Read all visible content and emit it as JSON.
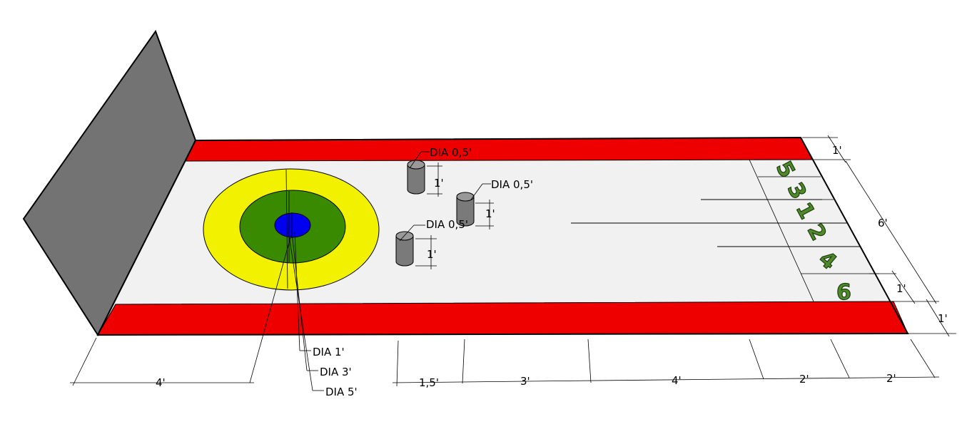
{
  "colors": {
    "wall": "#737373",
    "stripe": "#ef0000",
    "court": "#f1f1f1",
    "ring_outer": "#f2f200",
    "ring_middle": "#3a8a00",
    "ring_inner": "#0000f0",
    "peg": "#7a7a7a",
    "number_fill": "#4f8a2a"
  },
  "target_labels": {
    "inner": "DIA 1'",
    "middle": "DIA 3'",
    "outer": "DIA 5'"
  },
  "pegs": [
    {
      "diameter_label": "DIA 0,5'",
      "height_label": "1'"
    },
    {
      "diameter_label": "DIA 0,5'",
      "height_label": "1'"
    },
    {
      "diameter_label": "DIA 0,5'",
      "height_label": "1'"
    }
  ],
  "bottom_dimensions": {
    "left": "4'",
    "segments": [
      "1,5'",
      "3'",
      "4'",
      "2'",
      "2'"
    ]
  },
  "right_dimensions": {
    "top_stripe": "1'",
    "width": "6'",
    "bottom_lane": "1'",
    "bottom_stripe": "1'"
  },
  "score_numbers": [
    "5",
    "3",
    "1",
    "2",
    "4",
    "6"
  ],
  "icons": {
    "peg": "cylinder-icon"
  }
}
